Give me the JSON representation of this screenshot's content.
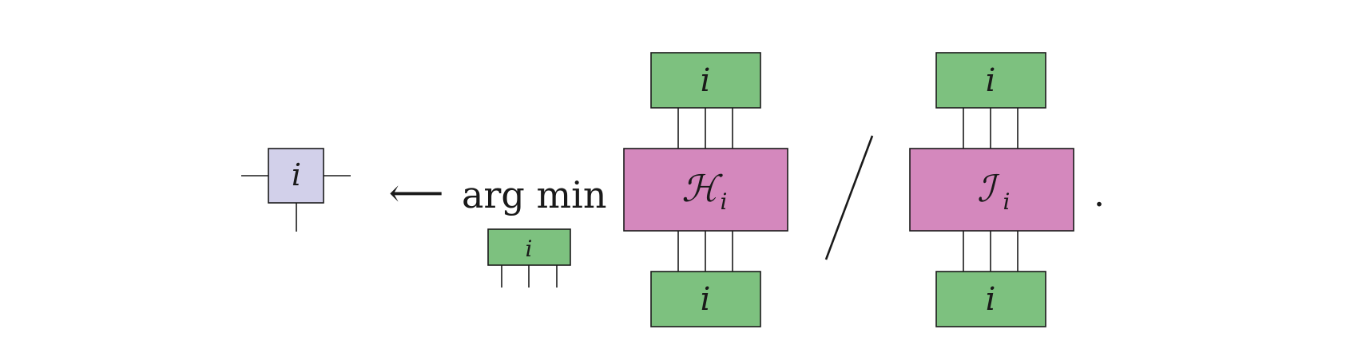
{
  "diagram": {
    "colors": {
      "result_tensor": "#d2d0ea",
      "state_tensor": "#7dc17f",
      "operator_tensor": "#d488bd",
      "ink": "#1a1a1a"
    },
    "result_tensor": {
      "label": "i"
    },
    "arrow": {
      "symbol": "⟵"
    },
    "argmin": {
      "operator": "arg min",
      "subscript_tensor_label": "i"
    },
    "numerator": {
      "bra_label": "i",
      "operator_symbol": "ℋ",
      "operator_subscript": "i",
      "ket_label": "i"
    },
    "divider": {
      "symbol": "slash"
    },
    "denominator": {
      "bra_label": "i",
      "operator_symbol": "ℐ",
      "operator_subscript": "i",
      "ket_label": "i"
    },
    "terminator": "."
  }
}
